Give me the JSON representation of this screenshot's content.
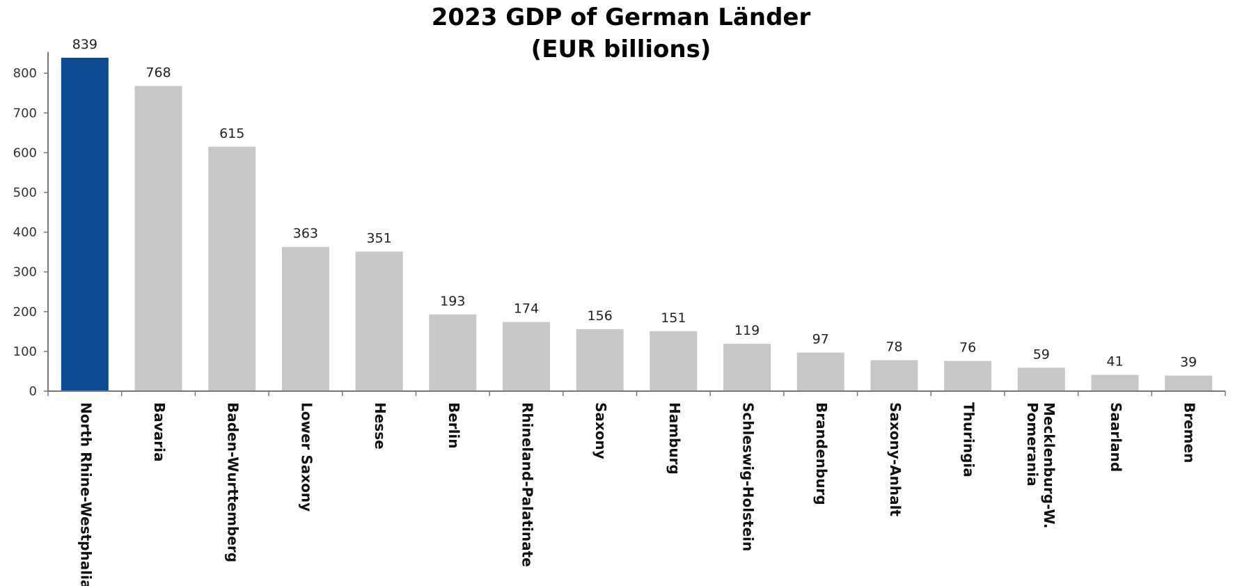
{
  "title_line1": "2023 GDP of German Länder",
  "title_line2": "(EUR billions)",
  "colors": {
    "highlight": "#0d4a94",
    "default": "#c8c8c8",
    "axis": "#777777"
  },
  "chart_data": {
    "type": "bar",
    "title": "2023 GDP of German Länder (EUR billions)",
    "categories": [
      "North Rhine-Westphalia",
      "Bavaria",
      "Baden-Wurttemberg",
      "Lower Saxony",
      "Hesse",
      "Berlin",
      "Rhineland-Palatinate",
      "Saxony",
      "Hamburg",
      "Schleswig-Holstein",
      "Brandenburg",
      "Saxony-Anhalt",
      "Thuringia",
      "Mecklenburg-W. Pomerania",
      "Saarland",
      "Bremen"
    ],
    "values": [
      839,
      768,
      615,
      363,
      351,
      193,
      174,
      156,
      151,
      119,
      97,
      78,
      76,
      59,
      41,
      39
    ],
    "highlight_index": 0,
    "ylim": [
      0,
      850
    ],
    "yticks": [
      0,
      100,
      200,
      300,
      400,
      500,
      600,
      700,
      800
    ],
    "xlabel": "",
    "ylabel": "",
    "grid": false,
    "data_labels": true
  }
}
